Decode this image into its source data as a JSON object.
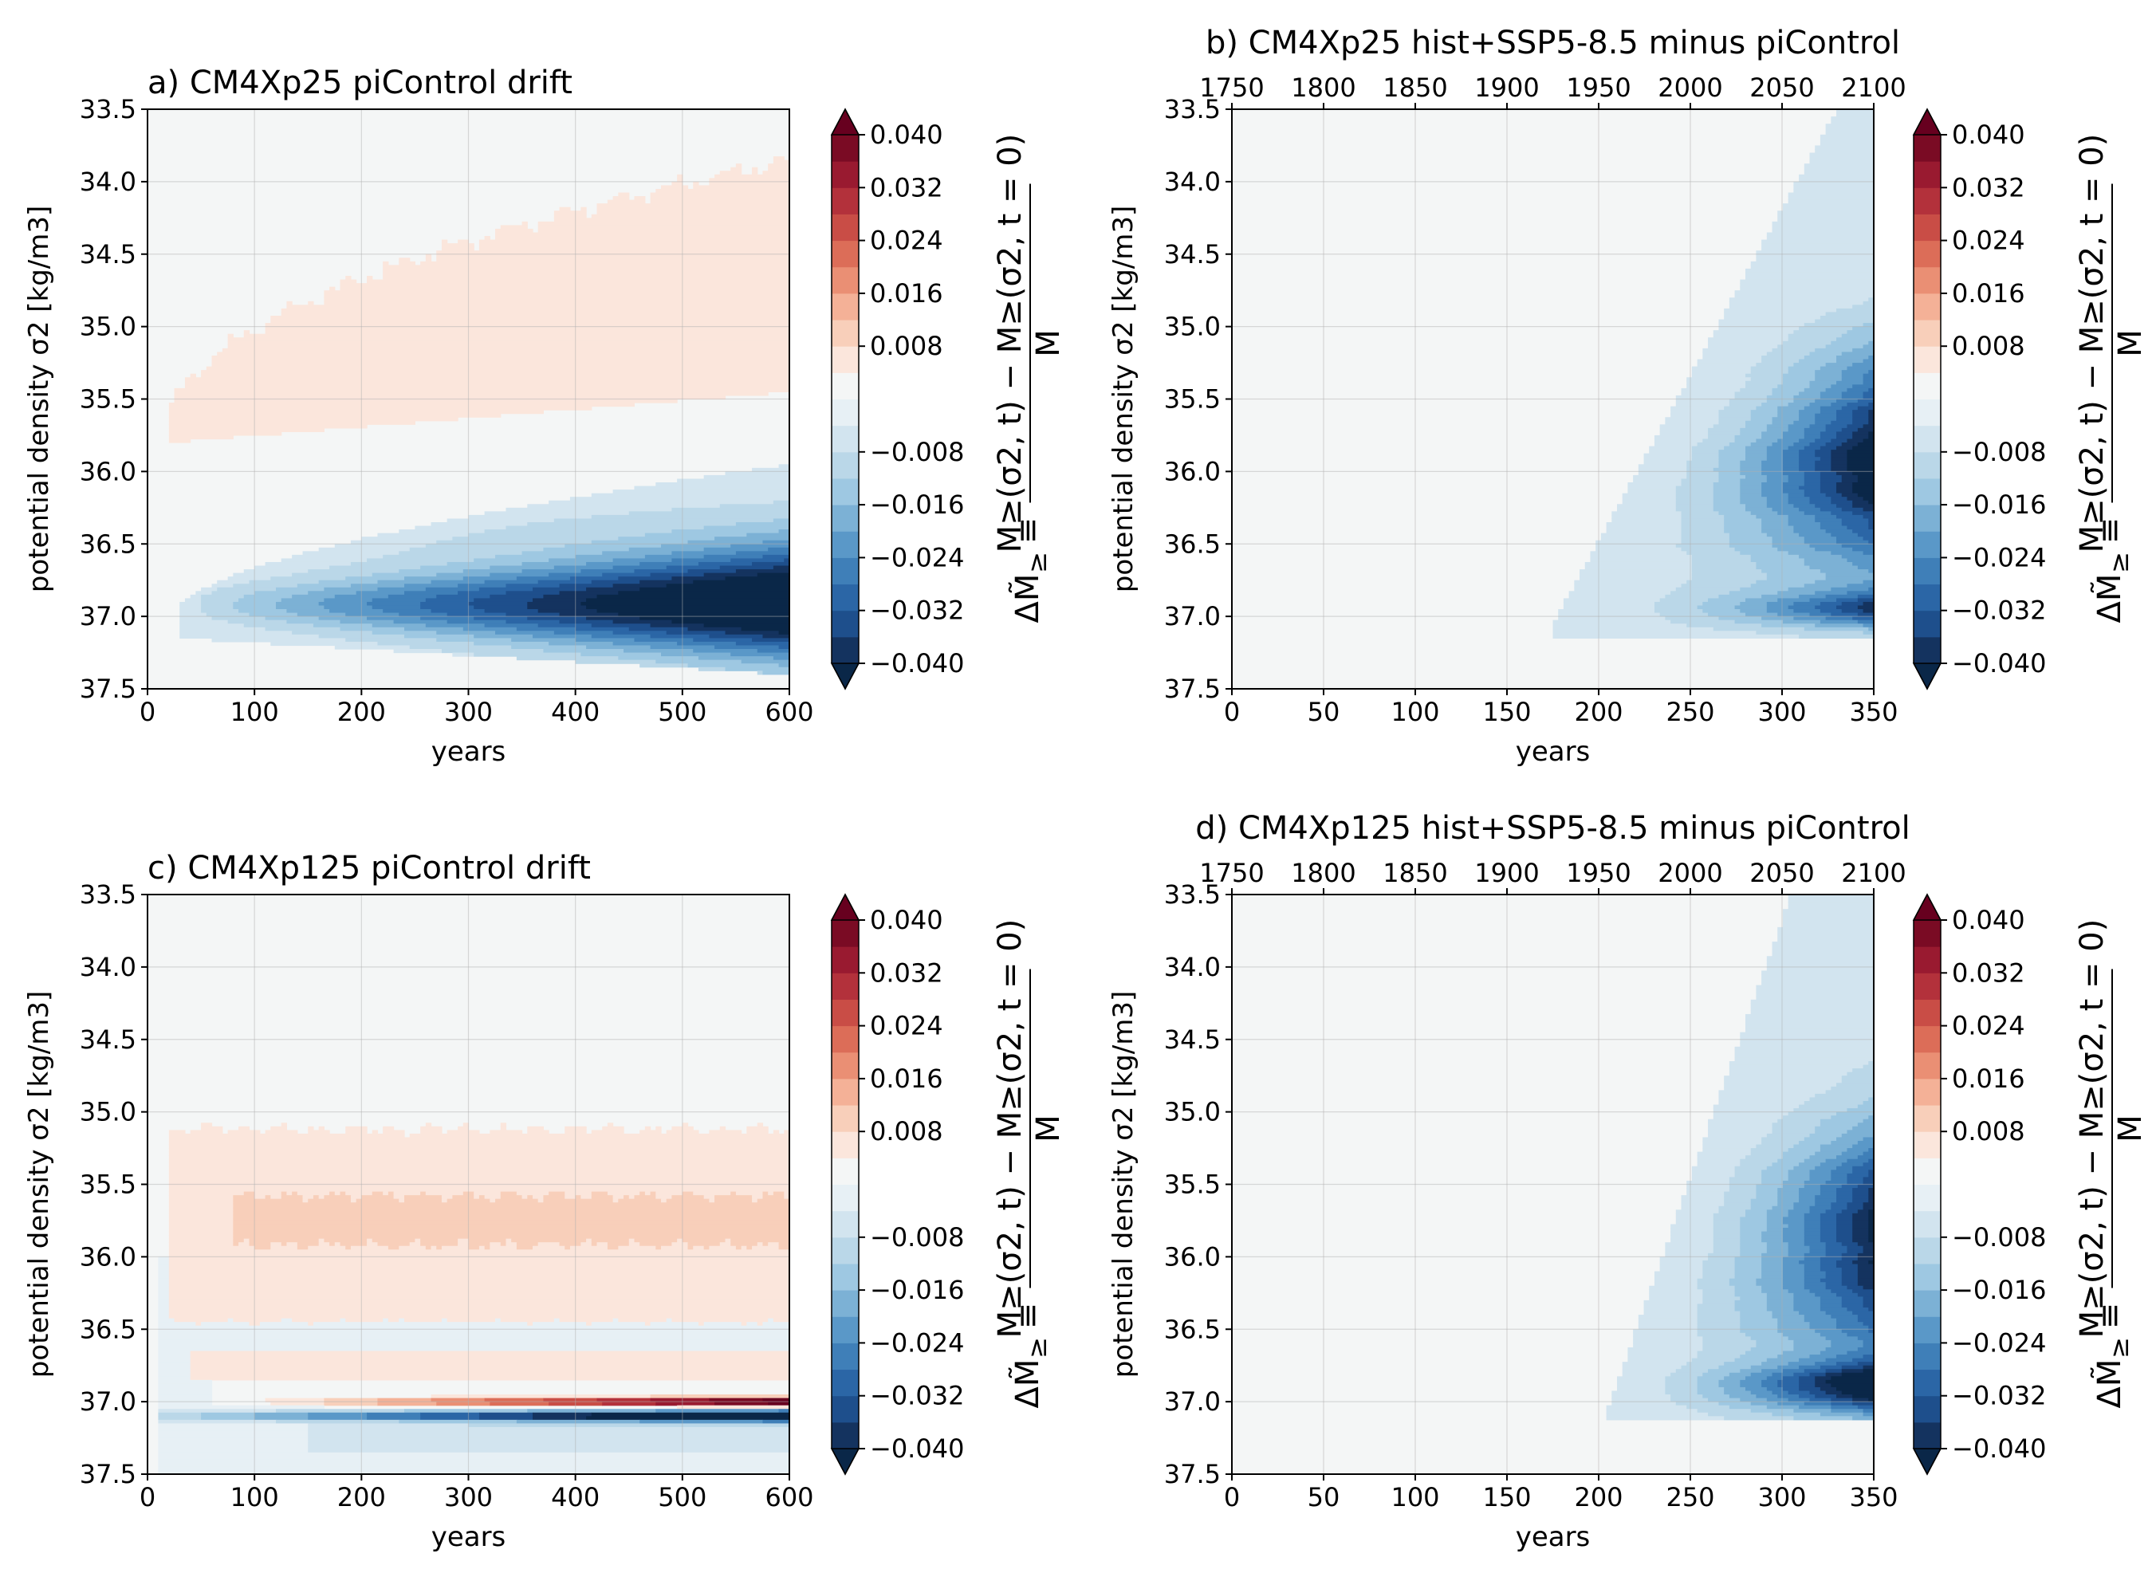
{
  "colors": {
    "levels": [
      -0.04,
      -0.036,
      -0.032,
      -0.028,
      -0.024,
      -0.02,
      -0.016,
      -0.012,
      -0.008,
      -0.004,
      0,
      0.004,
      0.008,
      0.012,
      0.016,
      0.02,
      0.024,
      0.028,
      0.032,
      0.036,
      0.04
    ],
    "bins": [
      "#14335f",
      "#1e4f8c",
      "#2b66a6",
      "#3f7fb8",
      "#5a98c8",
      "#7cb1d5",
      "#9ec8e2",
      "#bad7e8",
      "#d2e4ef",
      "#e7f0f5",
      "#f4f6f6",
      "#fbe6dc",
      "#f8cfba",
      "#f4b197",
      "#ea8f74",
      "#dc6d58",
      "#c94d46",
      "#b3313b",
      "#991a30",
      "#7a0b24"
    ],
    "under": "#0a2748",
    "over": "#67001f",
    "background": "#f4f6f6"
  },
  "colorbar": {
    "ticks": [
      "0.040",
      "0.032",
      "0.024",
      "0.016",
      "0.008",
      "−0.008",
      "−0.016",
      "−0.024",
      "−0.032",
      "−0.040"
    ],
    "label_lhs": "ΔM̃",
    "label_sub": "≥",
    "label_eq": "≡",
    "label_num": "M≥(σ2, t) − M≥(σ2, t = 0)",
    "label_den": "M"
  },
  "panels": [
    {
      "title": "a) CM4Xp25 piControl drift",
      "xlabel": "years",
      "ylabel": "potential density σ2 [kg/m3]",
      "xticks": [
        "0",
        "100",
        "200",
        "300",
        "400",
        "500",
        "600"
      ],
      "yticks": [
        "33.5",
        "34.0",
        "34.5",
        "35.0",
        "35.5",
        "36.0",
        "36.5",
        "37.0",
        "37.5"
      ],
      "top_ticks": []
    },
    {
      "title": "b) CM4Xp25 hist+SSP5-8.5 minus piControl",
      "xlabel": "years",
      "ylabel": "potential density σ2 [kg/m3]",
      "xticks": [
        "0",
        "50",
        "100",
        "150",
        "200",
        "250",
        "300",
        "350"
      ],
      "yticks": [
        "33.5",
        "34.0",
        "34.5",
        "35.0",
        "35.5",
        "36.0",
        "36.5",
        "37.0",
        "37.5"
      ],
      "top_ticks": [
        "1750",
        "1800",
        "1850",
        "1900",
        "1950",
        "2000",
        "2050",
        "2100"
      ]
    },
    {
      "title": "c) CM4Xp125 piControl drift",
      "xlabel": "years",
      "ylabel": "potential density σ2 [kg/m3]",
      "xticks": [
        "0",
        "100",
        "200",
        "300",
        "400",
        "500",
        "600"
      ],
      "yticks": [
        "33.5",
        "34.0",
        "34.5",
        "35.0",
        "35.5",
        "36.0",
        "36.5",
        "37.0",
        "37.5"
      ],
      "top_ticks": []
    },
    {
      "title": "d) CM4Xp125 hist+SSP5-8.5 minus piControl",
      "xlabel": "years",
      "ylabel": "potential density σ2 [kg/m3]",
      "xticks": [
        "0",
        "50",
        "100",
        "150",
        "200",
        "250",
        "300",
        "350"
      ],
      "yticks": [
        "33.5",
        "34.0",
        "34.5",
        "35.0",
        "35.5",
        "36.0",
        "36.5",
        "37.0",
        "37.5"
      ],
      "top_ticks": [
        "1750",
        "1800",
        "1850",
        "1900",
        "1950",
        "2000",
        "2050",
        "2100"
      ]
    }
  ],
  "chart_data": [
    {
      "type": "heatmap",
      "title": "a) CM4Xp25 piControl drift",
      "xlabel": "years",
      "ylabel": "potential density σ2 [kg/m3]",
      "xlim": [
        0,
        600
      ],
      "ylim": [
        37.5,
        33.5
      ],
      "levels_range": [
        -0.04,
        0.04
      ],
      "features": [
        {
          "kind": "positive_band",
          "x0": 20,
          "x1": 600,
          "y_top_start": 35.7,
          "y_top_end": 33.85,
          "y_bot_start": 35.75,
          "y_bot_end": 35.45,
          "value": 0.006
        },
        {
          "kind": "negative_lobe",
          "x0": 30,
          "x1": 600,
          "y_top_start": 36.9,
          "y_top_end": 35.95,
          "y_bot_start": 37.2,
          "y_bot_end": 37.4,
          "peak_y": 36.92,
          "peak_value": -0.045
        }
      ]
    },
    {
      "type": "heatmap",
      "title": "b) CM4Xp25 hist+SSP5-8.5 minus piControl",
      "xlabel": "years",
      "ylabel": "potential density σ2 [kg/m3]",
      "xlim": [
        0,
        350
      ],
      "ylim": [
        37.5,
        33.5
      ],
      "top_axis_years": [
        1750,
        2100
      ],
      "levels_range": [
        -0.04,
        0.04
      ],
      "features": [
        {
          "kind": "negative_wedge",
          "x_onset_at_37": 175,
          "x_onset_at_33_5": 330,
          "peak_y": 35.95,
          "peak_value": -0.045,
          "second_peak_y": 36.95
        }
      ]
    },
    {
      "type": "heatmap",
      "title": "c) CM4Xp125 piControl drift",
      "xlabel": "years",
      "ylabel": "potential density σ2 [kg/m3]",
      "xlim": [
        0,
        600
      ],
      "ylim": [
        37.5,
        33.5
      ],
      "levels_range": [
        -0.04,
        0.04
      ],
      "features": [
        {
          "kind": "positive_band",
          "x0": 20,
          "x1": 600,
          "y_top": 35.1,
          "y_bot": 36.45,
          "value": 0.006,
          "inner_core_y": [
            35.55,
            35.95
          ],
          "inner_value": 0.01
        },
        {
          "kind": "positive_band",
          "x0": 40,
          "x1": 600,
          "y_top": 36.65,
          "y_bot": 36.85,
          "value": 0.006
        },
        {
          "kind": "positive_thin",
          "x0": 60,
          "x1": 600,
          "y": 37.0,
          "peak_value": 0.045
        },
        {
          "kind": "negative_thin",
          "x0": 10,
          "x1": 600,
          "y": 37.1,
          "peak_value": -0.045
        }
      ]
    },
    {
      "type": "heatmap",
      "title": "d) CM4Xp125 hist+SSP5-8.5 minus piControl",
      "xlabel": "years",
      "ylabel": "potential density σ2 [kg/m3]",
      "xlim": [
        0,
        350
      ],
      "ylim": [
        37.5,
        33.5
      ],
      "top_axis_years": [
        1750,
        2100
      ],
      "levels_range": [
        -0.04,
        0.04
      ],
      "features": [
        {
          "kind": "negative_wedge",
          "x_onset_at_37": 205,
          "x_onset_at_33_5": 305,
          "peak_y": 36.9,
          "peak_value": -0.045,
          "second_peak_y": 35.9
        }
      ]
    }
  ]
}
